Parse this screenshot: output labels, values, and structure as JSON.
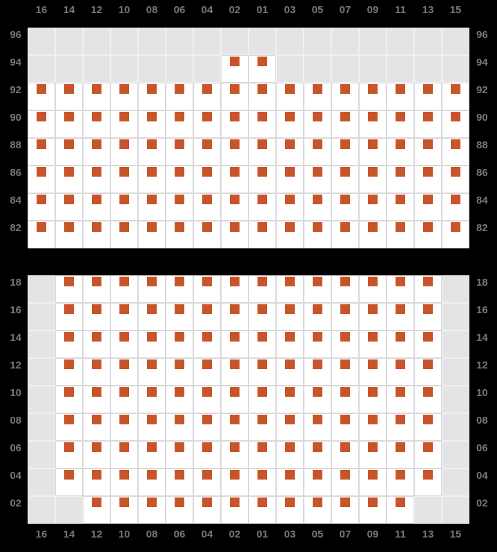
{
  "colors": {
    "background": "#000000",
    "label": "#73777f",
    "seat_cell": "#ffffff",
    "seat_cell_border": "#d9d9dc",
    "empty_cell": "#e4e4e6",
    "empty_cell_border": "#f1f1f2",
    "seat_marker": "#c8542a"
  },
  "column_labels": [
    "16",
    "14",
    "12",
    "10",
    "08",
    "06",
    "04",
    "02",
    "01",
    "03",
    "05",
    "07",
    "09",
    "11",
    "13",
    "15"
  ],
  "panels": [
    {
      "row_labels": [
        "96",
        "94",
        "92",
        "90",
        "88",
        "86",
        "84",
        "82"
      ],
      "rows": [
        "0000000000000000",
        "0000000110000000",
        "1111111111111111",
        "1111111111111111",
        "1111111111111111",
        "1111111111111111",
        "1111111111111111",
        "1111111111111111"
      ]
    },
    {
      "row_labels": [
        "18",
        "16",
        "14",
        "12",
        "10",
        "08",
        "06",
        "04",
        "02"
      ],
      "rows": [
        "0111111111111110",
        "0111111111111110",
        "0111111111111110",
        "0111111111111110",
        "0111111111111110",
        "0111111111111110",
        "0111111111111110",
        "0111111111111110",
        "0011111111111100"
      ]
    }
  ]
}
